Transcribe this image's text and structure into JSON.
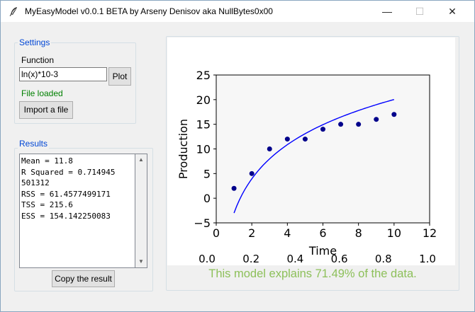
{
  "window": {
    "title": "MyEasyModel v0.0.1 BETA by Arseny Denisov aka NullBytes0x00",
    "minimize_glyph": "—",
    "maximize_glyph": "☐",
    "close_glyph": "✕"
  },
  "settings": {
    "group_label": "Settings",
    "function_label": "Function",
    "function_value": "ln(x)*10-3",
    "plot_label": "Plot",
    "status": "File loaded",
    "status_color": "#008000",
    "import_label": "Import a file"
  },
  "results": {
    "group_label": "Results",
    "text": "Mean = 11.8\nR Squared = 0.714945\n501312\nRSS = 61.4577499171\nTSS = 215.6\nESS = 154.142250083",
    "copy_label": "Copy the result"
  },
  "footer": {
    "explanation": "This model explains 71.49% of the data.",
    "color": "#8dc05a"
  },
  "chart_data": {
    "type": "scatter",
    "xlabel": "Time",
    "ylabel": "Production",
    "xlim": [
      0,
      12
    ],
    "ylim": [
      -5,
      25
    ],
    "x_ticks": [
      "0",
      "2",
      "4",
      "6",
      "8",
      "10",
      "12"
    ],
    "y_ticks": [
      "−5",
      "0",
      "5",
      "10",
      "15",
      "20",
      "25"
    ],
    "bottom_ticks": [
      "0.0",
      "0.2",
      "0.4",
      "0.6",
      "0.8",
      "1.0"
    ],
    "points": {
      "x": [
        1,
        2,
        3,
        4,
        5,
        6,
        7,
        8,
        9,
        10
      ],
      "y": [
        2,
        5,
        10,
        12,
        12,
        14,
        15,
        15,
        16,
        17
      ],
      "color": "#00008b"
    },
    "curve": {
      "function": "ln(x)*10-3",
      "x_range": [
        1,
        10
      ],
      "color": "#0000ff"
    },
    "grid": false,
    "legend": false
  }
}
